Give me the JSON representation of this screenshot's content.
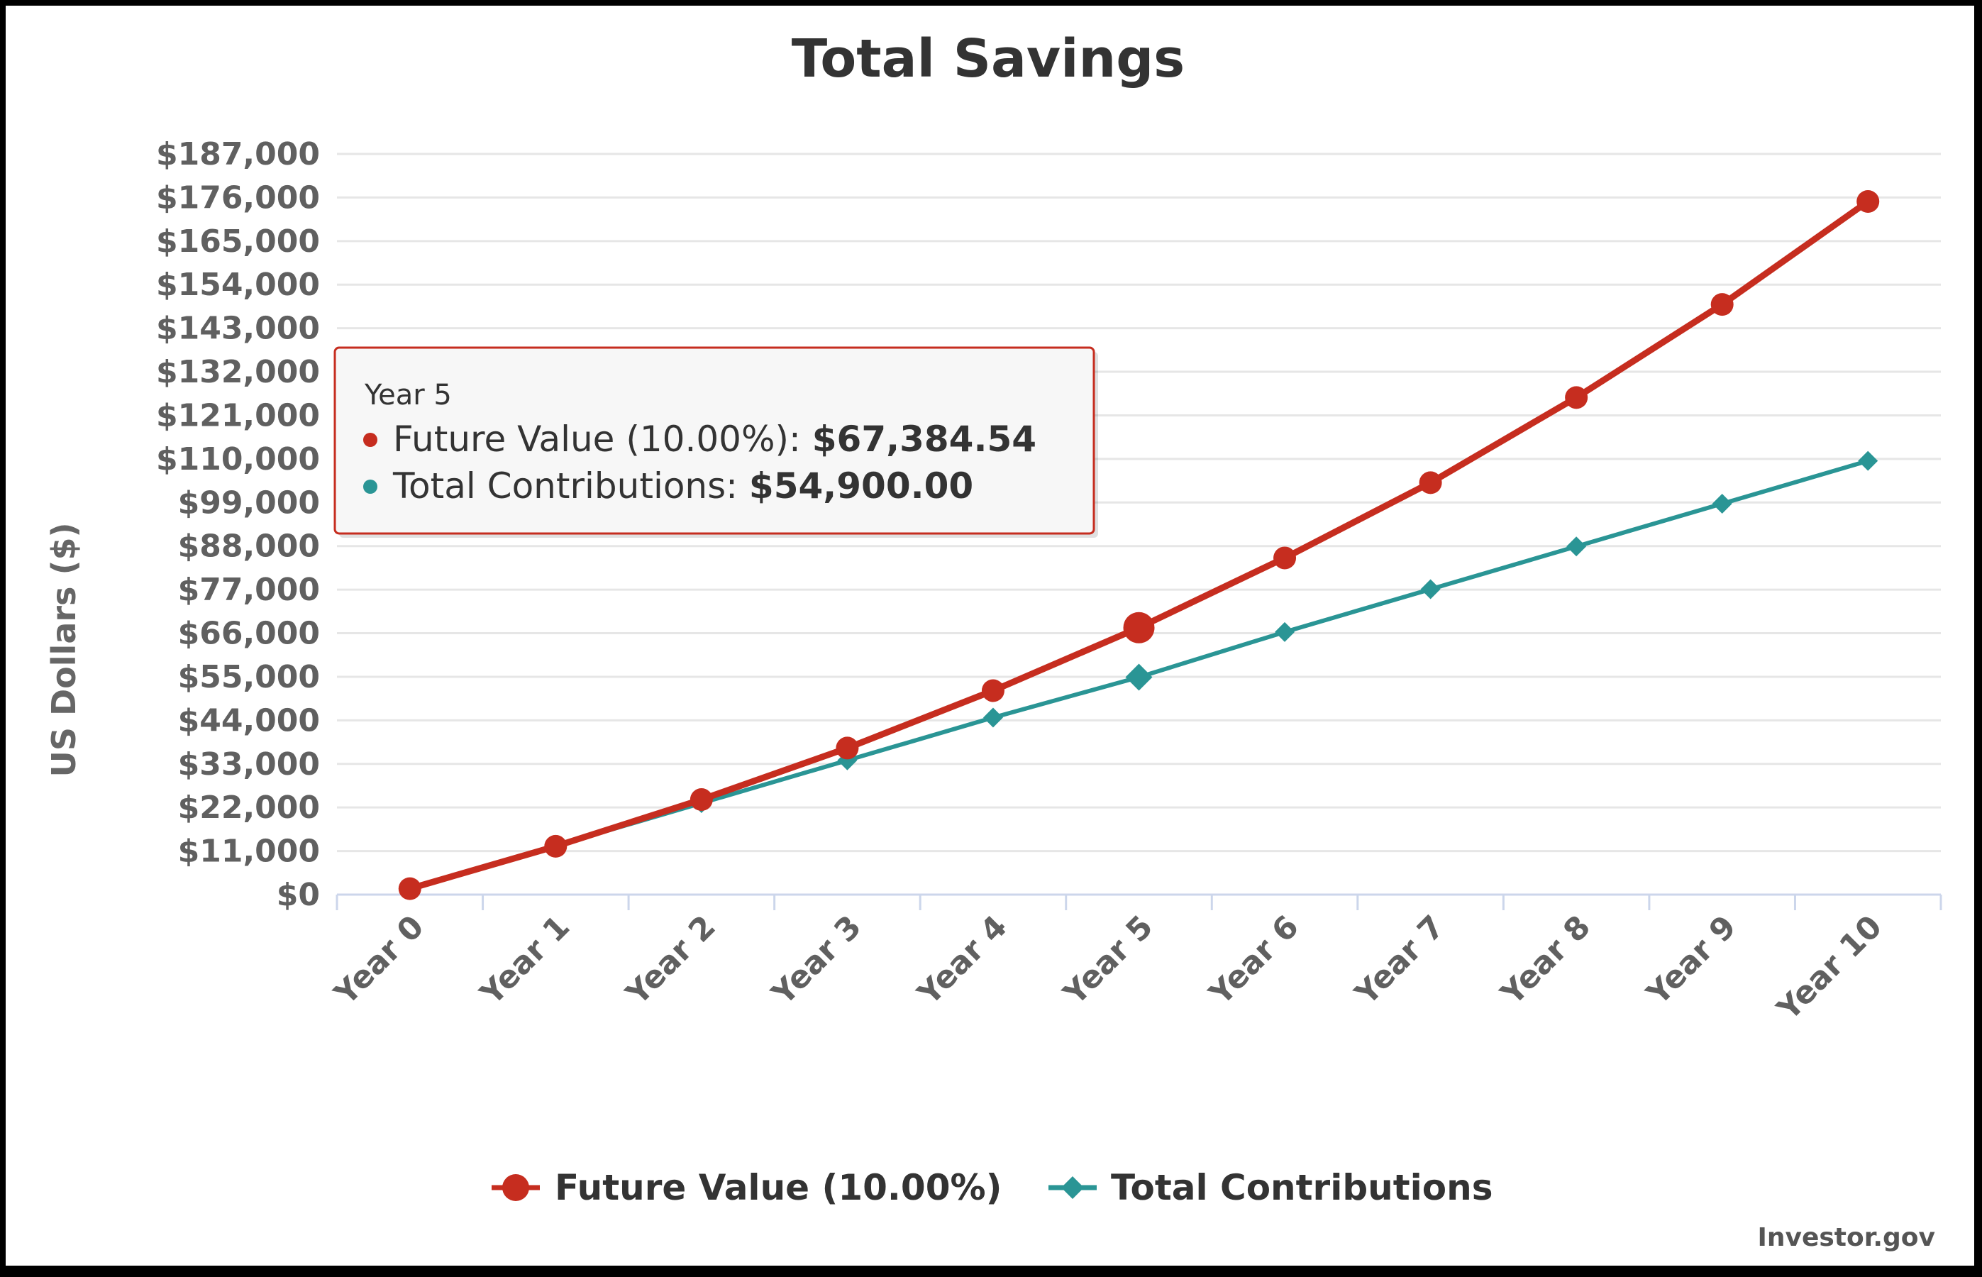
{
  "chart_data": {
    "type": "line",
    "title": "Total Savings",
    "ylabel": "US Dollars ($)",
    "xlabel": "",
    "categories": [
      "Year 0",
      "Year 1",
      "Year 2",
      "Year 3",
      "Year 4",
      "Year 5",
      "Year 6",
      "Year 7",
      "Year 8",
      "Year 9",
      "Year 10"
    ],
    "ylim": [
      0,
      187000
    ],
    "yticks": [
      0,
      11000,
      22000,
      33000,
      44000,
      55000,
      66000,
      77000,
      88000,
      99000,
      110000,
      121000,
      132000,
      143000,
      154000,
      165000,
      176000,
      187000
    ],
    "ytick_labels": [
      "$0",
      "$11,000",
      "$22,000",
      "$33,000",
      "$44,000",
      "$55,000",
      "$66,000",
      "$77,000",
      "$88,000",
      "$99,000",
      "$110,000",
      "$121,000",
      "$132,000",
      "$143,000",
      "$154,000",
      "$165,000",
      "$176,000",
      "$187,000"
    ],
    "grid": true,
    "legend_position": "bottom",
    "series": [
      {
        "name": "Future Value (10.00%)",
        "color": "#c62d1f",
        "marker": "circle",
        "values": [
          1500,
          12200,
          24000,
          37000,
          51500,
          67384.54,
          85000,
          104000,
          125500,
          149000,
          175000
        ]
      },
      {
        "name": "Total Contributions",
        "color": "#2a9595",
        "marker": "diamond",
        "values": [
          1500,
          12300,
          23100,
          33900,
          44700,
          54900,
          66300,
          77100,
          87900,
          98700,
          109500
        ]
      }
    ],
    "tooltip": {
      "header": "Year 5",
      "lines": [
        {
          "label": "Future Value (10.00%): ",
          "value": "$67,384.54",
          "color": "#c62d1f"
        },
        {
          "label": "Total Contributions: ",
          "value": "$54,900.00",
          "color": "#2a9595"
        }
      ],
      "highlight_index": 5
    },
    "credits": "Investor.gov"
  }
}
